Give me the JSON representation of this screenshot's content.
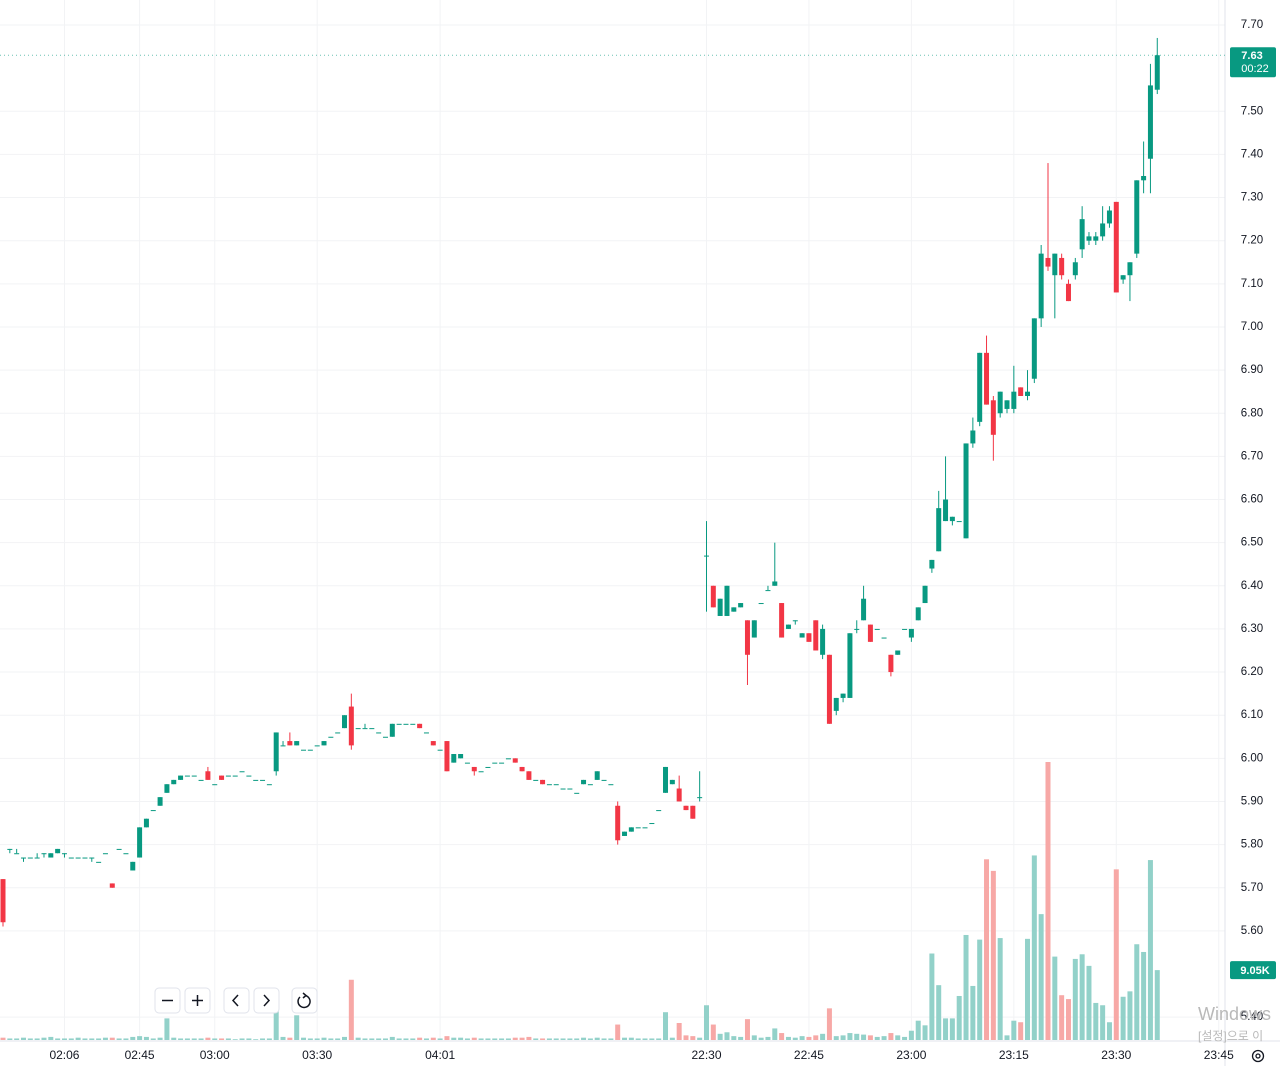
{
  "chart_data": {
    "type": "candlestick",
    "categories": [
      null,
      null,
      null,
      null,
      null,
      null,
      null,
      null,
      null,
      "02:06",
      null,
      null,
      null,
      null,
      null,
      null,
      null,
      null,
      null,
      null,
      "02:45",
      null,
      null,
      null,
      null,
      null,
      null,
      null,
      null,
      null,
      null,
      "03:00",
      null,
      null,
      null,
      null,
      null,
      null,
      null,
      null,
      null,
      null,
      null,
      null,
      null,
      null,
      "03:30",
      null,
      null,
      null,
      null,
      null,
      null,
      null,
      null,
      null,
      null,
      null,
      null,
      null,
      null,
      null,
      null,
      null,
      "04:01",
      null,
      null,
      null,
      null,
      null,
      null,
      null,
      null,
      null,
      null,
      null,
      null,
      null,
      null,
      null,
      null,
      null,
      null,
      null,
      null,
      null,
      null,
      null,
      null,
      null,
      null,
      null,
      null,
      null,
      null,
      null,
      null,
      null,
      null,
      null,
      null,
      null,
      null,
      "22:30",
      null,
      null,
      null,
      null,
      null,
      null,
      null,
      null,
      null,
      null,
      null,
      null,
      null,
      null,
      "22:45",
      null,
      null,
      null,
      null,
      null,
      null,
      null,
      null,
      null,
      null,
      null,
      null,
      null,
      null,
      "23:00",
      null,
      null,
      null,
      null,
      null,
      null,
      null,
      null,
      null,
      null,
      null,
      null,
      null,
      null,
      "23:15",
      null,
      null,
      null,
      null,
      null,
      null,
      null,
      null,
      null,
      null,
      null,
      null,
      null,
      null,
      "23:30",
      null,
      null,
      null,
      null,
      null,
      null,
      null,
      null,
      null,
      null,
      null,
      null,
      null,
      null,
      "23:45"
    ],
    "open": [
      5.72,
      5.79,
      5.78,
      5.77,
      5.77,
      5.77,
      5.78,
      5.77,
      5.78,
      5.78,
      5.77,
      5.77,
      5.77,
      5.77,
      5.76,
      5.78,
      5.71,
      5.79,
      5.78,
      5.74,
      5.77,
      5.84,
      5.88,
      5.89,
      5.92,
      5.94,
      5.95,
      5.96,
      5.96,
      5.95,
      5.97,
      5.94,
      5.96,
      5.96,
      5.96,
      5.97,
      5.96,
      5.95,
      5.95,
      5.94,
      5.97,
      6.03,
      6.04,
      6.03,
      6.02,
      6.02,
      6.03,
      6.03,
      6.05,
      6.06,
      6.07,
      6.12,
      6.07,
      6.07,
      6.07,
      6.06,
      6.05,
      6.05,
      6.08,
      6.08,
      6.08,
      6.08,
      6.06,
      6.04,
      6.02,
      6.04,
      5.99,
      6.0,
      5.99,
      5.98,
      5.97,
      5.98,
      5.99,
      5.99,
      6.0,
      6.0,
      5.98,
      5.97,
      5.95,
      5.95,
      5.94,
      5.94,
      5.93,
      5.93,
      5.92,
      5.94,
      5.94,
      5.95,
      5.95,
      5.94,
      5.89,
      5.82,
      5.83,
      5.84,
      5.84,
      5.85,
      5.88,
      5.92,
      5.94,
      5.93,
      5.89,
      5.89,
      5.91,
      6.47,
      6.4,
      6.33,
      6.33,
      6.34,
      6.35,
      6.32,
      6.28,
      6.36,
      6.39,
      6.4,
      6.36,
      6.3,
      6.32,
      6.28,
      6.29,
      6.32,
      6.24,
      6.24,
      6.11,
      6.14,
      6.14,
      6.3,
      6.32,
      6.31,
      6.3,
      6.28,
      6.24,
      6.24,
      6.3,
      6.28,
      6.32,
      6.36,
      6.44,
      6.48,
      6.55,
      6.55,
      6.55,
      6.51,
      6.73,
      6.78,
      6.94,
      6.83,
      6.8,
      6.81,
      6.81,
      6.86,
      6.84,
      6.88,
      7.02,
      7.16,
      7.12,
      7.16,
      7.1,
      7.12,
      7.18,
      7.2,
      7.2,
      7.21,
      7.24,
      7.29,
      7.11,
      7.12,
      7.17,
      7.34,
      7.39,
      7.55,
      null,
      null,
      null,
      null,
      null,
      null,
      null,
      null,
      null
    ],
    "high": [
      5.72,
      5.79,
      5.79,
      5.77,
      5.77,
      5.78,
      5.78,
      5.78,
      5.79,
      5.78,
      5.77,
      5.77,
      5.77,
      5.77,
      5.76,
      5.78,
      5.71,
      5.79,
      5.78,
      5.76,
      5.84,
      5.86,
      5.88,
      5.91,
      5.94,
      5.95,
      5.96,
      5.96,
      5.96,
      5.95,
      5.98,
      5.94,
      5.96,
      5.96,
      5.96,
      5.97,
      5.96,
      5.95,
      5.95,
      5.94,
      6.06,
      6.04,
      6.06,
      6.04,
      6.02,
      6.02,
      6.03,
      6.04,
      6.05,
      6.06,
      6.1,
      6.15,
      6.07,
      6.08,
      6.07,
      6.06,
      6.05,
      6.08,
      6.08,
      6.08,
      6.08,
      6.08,
      6.06,
      6.04,
      6.02,
      6.04,
      6.01,
      6.01,
      5.99,
      5.98,
      5.97,
      5.98,
      5.99,
      5.99,
      6.0,
      6.0,
      5.98,
      5.97,
      5.95,
      5.95,
      5.94,
      5.94,
      5.93,
      5.93,
      5.92,
      5.95,
      5.94,
      5.97,
      5.95,
      5.94,
      5.9,
      5.83,
      5.84,
      5.84,
      5.84,
      5.85,
      5.88,
      5.98,
      5.95,
      5.96,
      5.89,
      5.89,
      5.97,
      6.55,
      6.4,
      6.37,
      6.4,
      6.35,
      6.36,
      6.32,
      6.32,
      6.36,
      6.4,
      6.5,
      6.36,
      6.31,
      6.32,
      6.29,
      6.29,
      6.32,
      6.31,
      6.24,
      6.14,
      6.15,
      6.29,
      6.32,
      6.4,
      6.31,
      6.3,
      6.28,
      6.24,
      6.25,
      6.3,
      6.3,
      6.35,
      6.4,
      6.46,
      6.62,
      6.7,
      6.56,
      6.55,
      6.73,
      6.79,
      6.94,
      6.98,
      6.84,
      6.85,
      6.83,
      6.91,
      6.86,
      6.9,
      7.02,
      7.19,
      7.38,
      7.17,
      7.17,
      7.11,
      7.16,
      7.28,
      7.22,
      7.22,
      7.28,
      7.28,
      7.29,
      7.12,
      7.15,
      7.34,
      7.43,
      7.61,
      7.67,
      null,
      null,
      null,
      null,
      null,
      null,
      null,
      null,
      null
    ],
    "low": [
      5.61,
      5.78,
      5.78,
      5.76,
      5.77,
      5.77,
      5.77,
      5.77,
      5.78,
      5.77,
      5.77,
      5.77,
      5.77,
      5.76,
      5.76,
      5.78,
      5.7,
      5.79,
      5.78,
      5.74,
      5.77,
      5.84,
      5.88,
      5.89,
      5.92,
      5.94,
      5.95,
      5.96,
      5.96,
      5.95,
      5.95,
      5.94,
      5.95,
      5.96,
      5.96,
      5.97,
      5.96,
      5.95,
      5.95,
      5.94,
      5.96,
      6.03,
      6.03,
      6.03,
      6.02,
      6.02,
      6.03,
      6.03,
      6.05,
      6.06,
      6.07,
      6.02,
      6.07,
      6.07,
      6.07,
      6.06,
      6.05,
      6.05,
      6.08,
      6.08,
      6.08,
      6.07,
      6.06,
      6.03,
      6.02,
      5.97,
      5.99,
      6.0,
      5.99,
      5.96,
      5.97,
      5.98,
      5.99,
      5.99,
      6.0,
      5.99,
      5.97,
      5.95,
      5.95,
      5.94,
      5.94,
      5.94,
      5.93,
      5.93,
      5.92,
      5.94,
      5.94,
      5.95,
      5.95,
      5.94,
      5.8,
      5.82,
      5.83,
      5.84,
      5.84,
      5.85,
      5.88,
      5.92,
      5.94,
      5.9,
      5.88,
      5.86,
      5.9,
      6.34,
      6.35,
      6.33,
      6.33,
      6.34,
      6.35,
      6.17,
      6.28,
      6.36,
      6.39,
      6.4,
      6.28,
      6.3,
      6.31,
      6.28,
      6.27,
      6.25,
      6.23,
      6.08,
      6.1,
      6.13,
      6.14,
      6.29,
      6.32,
      6.27,
      6.3,
      6.28,
      6.19,
      6.24,
      6.3,
      6.27,
      6.32,
      6.36,
      6.43,
      6.48,
      6.55,
      6.54,
      6.55,
      6.51,
      6.72,
      6.77,
      6.82,
      6.69,
      6.79,
      6.8,
      6.8,
      6.84,
      6.83,
      6.87,
      7.0,
      7.13,
      7.02,
      7.11,
      7.06,
      7.11,
      7.16,
      7.19,
      7.19,
      7.2,
      7.23,
      7.08,
      7.1,
      7.06,
      7.16,
      7.31,
      7.31,
      7.54,
      null,
      null,
      null,
      null,
      null,
      null,
      null,
      null,
      null
    ],
    "close": [
      5.62,
      5.79,
      5.78,
      5.77,
      5.77,
      5.77,
      5.78,
      5.78,
      5.79,
      5.78,
      5.77,
      5.77,
      5.77,
      5.77,
      5.76,
      5.78,
      5.7,
      5.79,
      5.78,
      5.76,
      5.84,
      5.86,
      5.88,
      5.91,
      5.94,
      5.95,
      5.96,
      5.96,
      5.96,
      5.95,
      5.95,
      5.94,
      5.95,
      5.96,
      5.96,
      5.97,
      5.96,
      5.95,
      5.95,
      5.94,
      6.06,
      6.03,
      6.03,
      6.04,
      6.02,
      6.02,
      6.03,
      6.04,
      6.05,
      6.06,
      6.1,
      6.03,
      6.07,
      6.07,
      6.07,
      6.06,
      6.05,
      6.08,
      6.08,
      6.08,
      6.08,
      6.07,
      6.06,
      6.03,
      6.02,
      5.97,
      6.01,
      6.01,
      5.99,
      5.97,
      5.97,
      5.98,
      5.99,
      5.99,
      6.0,
      5.99,
      5.97,
      5.95,
      5.95,
      5.94,
      5.94,
      5.94,
      5.93,
      5.93,
      5.92,
      5.95,
      5.94,
      5.97,
      5.95,
      5.94,
      5.81,
      5.83,
      5.84,
      5.84,
      5.84,
      5.85,
      5.88,
      5.98,
      5.95,
      5.9,
      5.88,
      5.86,
      5.91,
      6.47,
      6.35,
      6.37,
      6.4,
      6.35,
      6.36,
      6.24,
      6.32,
      6.36,
      6.39,
      6.41,
      6.28,
      6.31,
      6.32,
      6.29,
      6.27,
      6.25,
      6.3,
      6.08,
      6.14,
      6.15,
      6.29,
      6.3,
      6.37,
      6.27,
      6.3,
      6.28,
      6.2,
      6.25,
      6.3,
      6.3,
      6.35,
      6.4,
      6.46,
      6.58,
      6.6,
      6.56,
      6.55,
      6.73,
      6.76,
      6.94,
      6.82,
      6.75,
      6.85,
      6.83,
      6.85,
      6.84,
      6.85,
      7.02,
      7.17,
      7.14,
      7.17,
      7.12,
      7.06,
      7.15,
      7.25,
      7.21,
      7.21,
      7.24,
      7.27,
      7.08,
      7.12,
      7.15,
      7.34,
      7.35,
      7.56,
      7.63,
      null,
      null,
      null,
      null,
      null,
      null,
      null,
      null,
      null
    ],
    "volume": [
      300,
      200,
      200,
      300,
      200,
      200,
      300,
      400,
      200,
      200,
      200,
      300,
      200,
      200,
      200,
      300,
      300,
      200,
      200,
      400,
      500,
      400,
      200,
      300,
      2800,
      300,
      200,
      200,
      200,
      200,
      300,
      200,
      200,
      200,
      100,
      200,
      200,
      100,
      200,
      200,
      3900,
      400,
      300,
      3200,
      300,
      200,
      200,
      300,
      200,
      200,
      400,
      7800,
      300,
      200,
      200,
      200,
      200,
      400,
      200,
      200,
      200,
      300,
      200,
      300,
      200,
      500,
      300,
      300,
      200,
      300,
      200,
      200,
      200,
      200,
      200,
      300,
      300,
      400,
      200,
      200,
      200,
      200,
      200,
      200,
      200,
      300,
      200,
      300,
      200,
      200,
      2000,
      300,
      300,
      200,
      200,
      200,
      200,
      3600,
      300,
      2200,
      600,
      500,
      300,
      4500,
      2000,
      800,
      1000,
      500,
      400,
      2700,
      600,
      300,
      400,
      1500,
      900,
      400,
      300,
      500,
      400,
      600,
      800,
      4100,
      500,
      600,
      900,
      800,
      700,
      600,
      400,
      500,
      900,
      600,
      400,
      1200,
      2500,
      1900,
      11200,
      7100,
      2800,
      2800,
      5700,
      13600,
      7000,
      13000,
      23400,
      21900,
      13200,
      600,
      2500,
      2300,
      13100,
      23900,
      16300,
      36000,
      10800,
      5800,
      5300,
      10500,
      11100,
      9600,
      4800,
      4500,
      2300,
      22100,
      5600,
      6300,
      12400,
      11400,
      23300,
      9050,
      null,
      null,
      null,
      null,
      null,
      null,
      null,
      null,
      null
    ],
    "up_color": "#089981",
    "down_color": "#f23645",
    "volume_up_color": "#92d1c9",
    "volume_down_color": "#f7a8a6",
    "ylim": [
      5.347,
      7.758
    ],
    "yticks": [
      {
        "value": 5.4,
        "label": "5.40"
      },
      {
        "value": 5.6,
        "label": "5.60"
      },
      {
        "value": 5.7,
        "label": "5.70"
      },
      {
        "value": 5.8,
        "label": "5.80"
      },
      {
        "value": 5.9,
        "label": "5.90"
      },
      {
        "value": 6.0,
        "label": "6.00"
      },
      {
        "value": 6.1,
        "label": "6.10"
      },
      {
        "value": 6.2,
        "label": "6.20"
      },
      {
        "value": 6.3,
        "label": "6.30"
      },
      {
        "value": 6.4,
        "label": "6.40"
      },
      {
        "value": 6.5,
        "label": "6.50"
      },
      {
        "value": 6.6,
        "label": "6.60"
      },
      {
        "value": 6.7,
        "label": "6.70"
      },
      {
        "value": 6.8,
        "label": "6.80"
      },
      {
        "value": 6.9,
        "label": "6.90"
      },
      {
        "value": 7.0,
        "label": "7.00"
      },
      {
        "value": 7.1,
        "label": "7.10"
      },
      {
        "value": 7.2,
        "label": "7.20"
      },
      {
        "value": 7.3,
        "label": "7.30"
      },
      {
        "value": 7.4,
        "label": "7.40"
      },
      {
        "value": 7.5,
        "label": "7.50"
      },
      {
        "value": 7.7,
        "label": "7.70"
      }
    ],
    "grid": true,
    "price_tag": {
      "value": 7.63,
      "label": "7.63",
      "countdown": "00:22"
    },
    "volume_tag": {
      "value": 9050,
      "label": "9.05K"
    }
  },
  "watermark": {
    "line1": "Windows",
    "line2": "[설정]으로 이"
  }
}
